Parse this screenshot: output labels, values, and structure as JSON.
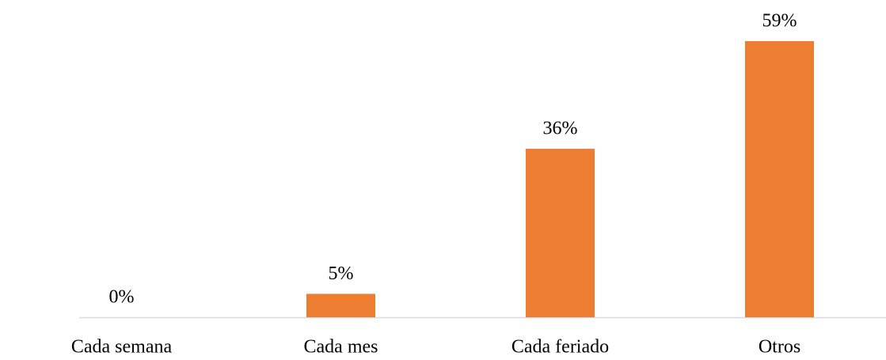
{
  "chart_data": {
    "type": "bar",
    "categories": [
      "Cada semana",
      "Cada mes",
      "Cada feriado",
      "Otros"
    ],
    "values": [
      0,
      5,
      36,
      59
    ],
    "value_labels": [
      "0%",
      "5%",
      "36%",
      "59%"
    ],
    "color": "#ed7d31"
  }
}
